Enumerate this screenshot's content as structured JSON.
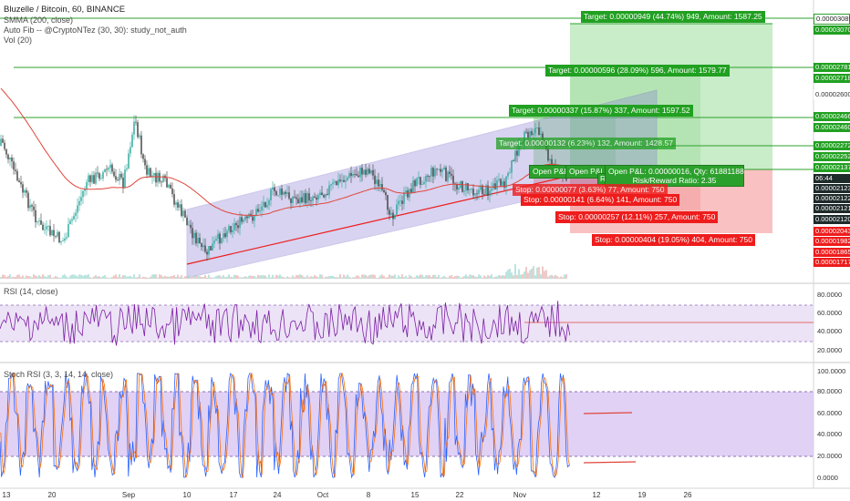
{
  "header": {
    "title": "Bluzelle / Bitcoin, 60, BINANCE",
    "indicators": [
      "SMMA (200, close)",
      "Auto Fib -- @CryptoNTez (30, 30): study_not_auth",
      "Vol (20)"
    ]
  },
  "panes": {
    "rsi_label": "RSI (14, close)",
    "stoch_label": "Stoch RSI (3, 3, 14, 14, close)"
  },
  "price_axis": {
    "labels": [
      {
        "text": "0.00003089",
        "style": "grid"
      },
      {
        "text": "0.00003070",
        "style": "green"
      },
      {
        "text": "0.00002781",
        "style": "green"
      },
      {
        "text": "0.00002718",
        "style": "green"
      },
      {
        "text": "0.00002600",
        "style": "plain"
      },
      {
        "text": "0.00002466",
        "style": "green"
      },
      {
        "text": "0.00002460",
        "style": "green"
      },
      {
        "text": "0.00002272",
        "style": "green"
      },
      {
        "text": "0.00002252",
        "style": "green"
      },
      {
        "text": "0.00002137",
        "style": "green"
      },
      {
        "text": "06:44",
        "style": "dark"
      },
      {
        "text": "0.00002123",
        "style": "dark"
      },
      {
        "text": "0.00002122",
        "style": "dark"
      },
      {
        "text": "0.00002121",
        "style": "dark"
      },
      {
        "text": "0.00002120",
        "style": "dark"
      },
      {
        "text": "0.00002043",
        "style": "red"
      },
      {
        "text": "0.00001982",
        "style": "red"
      },
      {
        "text": "0.00001865",
        "style": "red"
      },
      {
        "text": "0.00001717",
        "style": "red"
      }
    ]
  },
  "rsi_axis": [
    "80.0000",
    "60.0000",
    "40.0000",
    "20.0000"
  ],
  "stoch_axis": [
    "100.0000",
    "80.0000",
    "60.0000",
    "40.0000",
    "20.0000",
    "0.0000"
  ],
  "date_axis": [
    "13",
    "20",
    "Sep",
    "10",
    "17",
    "24",
    "Oct",
    "8",
    "15",
    "22",
    "Nov",
    "12",
    "19",
    "26"
  ],
  "targets": [
    "Target: 0.00000949 (44.74%) 949, Amount: 1587.25",
    "Target: 0.00000596 (28.09%) 596, Amount: 1579.77",
    "Target: 0.00000337 (15.87%) 337, Amount: 1597.52",
    "Target: 0.00000132 (6.23%) 132, Amount: 1428.57"
  ],
  "stops": [
    "Stop: 0.00000077 (3.63%) 77, Amount: 750",
    "Stop: 0.00000141 (6.64%) 141, Amount: 750",
    "Stop: 0.00000257 (12.11%) 257, Amount: 750",
    "Stop: 0.00000404 (19.05%) 404, Amount: 750"
  ],
  "positions": {
    "pnl_main": "Open P&L: 0.00000016, Qty: 61881188",
    "risk_reward": "Risk/Reward Ratio: 2.35",
    "pnl_short_1": "Open P&L",
    "pnl_short_2": "Open P&L",
    "pnl_ratio_fragment": "Ri"
  },
  "colors": {
    "candle_up": "#26a69a",
    "candle_down": "#3c3c3c",
    "target_zone": "#b7e6b7",
    "stop_zone": "#f7b1b1",
    "channel": "#8f84d6",
    "smma": "#e0453a",
    "rsi_line": "#7b1fa2",
    "stoch_k": "#2962ff",
    "stoch_d": "#ff6d00"
  }
}
